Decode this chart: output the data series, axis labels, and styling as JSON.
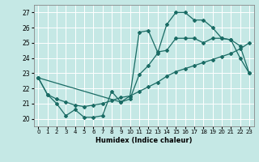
{
  "xlabel": "Humidex (Indice chaleur)",
  "xlim": [
    -0.5,
    23.5
  ],
  "ylim": [
    19.5,
    27.5
  ],
  "yticks": [
    20,
    21,
    22,
    23,
    24,
    25,
    26,
    27
  ],
  "xticks": [
    0,
    1,
    2,
    3,
    4,
    5,
    6,
    7,
    8,
    9,
    10,
    11,
    12,
    13,
    14,
    15,
    16,
    17,
    18,
    19,
    20,
    21,
    22,
    23
  ],
  "bg_color": "#c5e8e5",
  "line_color": "#1a6b64",
  "grid_color": "#ffffff",
  "line1_x": [
    0,
    1,
    2,
    3,
    4,
    5,
    6,
    7,
    8,
    9,
    10,
    11,
    12,
    13,
    14,
    15,
    16,
    17,
    18,
    19,
    20,
    21,
    22,
    23
  ],
  "line1_y": [
    22.7,
    21.6,
    21.0,
    20.2,
    20.6,
    20.1,
    20.1,
    20.2,
    21.8,
    21.1,
    21.3,
    22.9,
    23.5,
    24.3,
    26.2,
    27.0,
    27.0,
    26.5,
    26.5,
    26.0,
    25.3,
    25.2,
    24.0,
    23.0
  ],
  "line2_x": [
    0,
    9,
    10,
    11,
    12,
    13,
    14,
    15,
    16,
    17,
    18,
    19,
    20,
    21,
    22,
    23
  ],
  "line2_y": [
    22.7,
    21.1,
    21.5,
    25.7,
    25.8,
    24.4,
    24.5,
    25.3,
    25.3,
    25.3,
    25.0,
    25.3,
    25.3,
    25.2,
    24.8,
    23.0
  ],
  "line3_x": [
    0,
    1,
    2,
    3,
    4,
    5,
    6,
    7,
    8,
    9,
    10,
    11,
    12,
    13,
    14,
    15,
    16,
    17,
    18,
    19,
    20,
    21,
    22,
    23
  ],
  "line3_y": [
    22.7,
    21.6,
    21.3,
    21.1,
    20.9,
    20.8,
    20.9,
    21.0,
    21.2,
    21.4,
    21.5,
    21.8,
    22.1,
    22.4,
    22.8,
    23.1,
    23.3,
    23.5,
    23.7,
    23.9,
    24.1,
    24.3,
    24.6,
    25.0
  ]
}
